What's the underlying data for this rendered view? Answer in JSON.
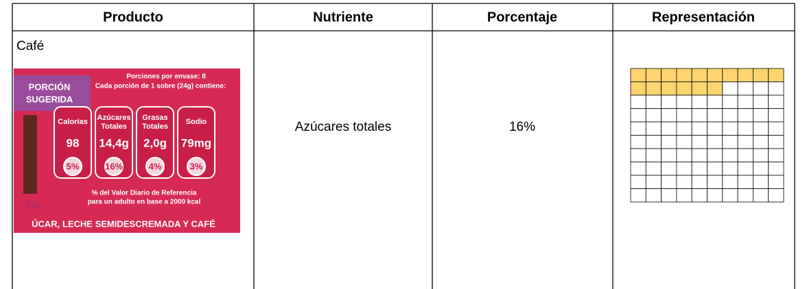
{
  "table": {
    "header": [
      "Producto",
      "Nutriente",
      "Porcentaje",
      "Representación"
    ],
    "rows": [
      {
        "product": "Café",
        "label_image": {
          "badge": [
            "PORCIÓN",
            "SUGERIDA"
          ],
          "servings": "Porciones por envase: 8",
          "serving_size": "Cada porción de 1 sobre (24g) contiene:",
          "nutrients": [
            {
              "name": [
                "Calorías"
              ],
              "amount": "98",
              "percent": "5%"
            },
            {
              "name": [
                "Azúcares",
                "Totales"
              ],
              "amount": "14,4g",
              "percent": "16%"
            },
            {
              "name": [
                "Grasas",
                "Totales"
              ],
              "amount": "2,0g",
              "percent": "4%"
            },
            {
              "name": [
                "Sodio"
              ],
              "amount": "79mg",
              "percent": "3%"
            }
          ],
          "footnote": [
            "% del Valor Diario de Referencia",
            "para un adulto en base a 2000 kcal"
          ],
          "weight": "24g",
          "ingredients": "ÚCAR, LECHE SEMIDESCREMADA Y CAFÉ"
        },
        "nutrient": "Azúcares totales",
        "percentage": {
          "value": 16,
          "label": "16%"
        }
      }
    ]
  }
}
